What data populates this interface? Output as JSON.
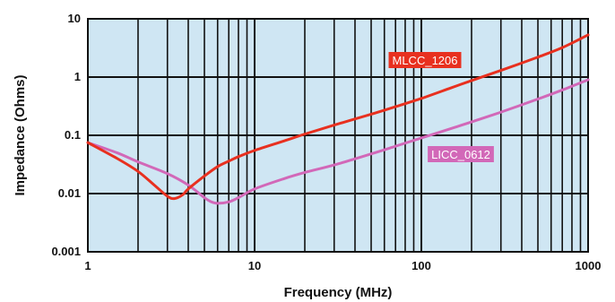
{
  "chart_data": {
    "type": "line",
    "title": "",
    "xlabel": "Frequency (MHz)",
    "ylabel": "Impedance  (Ohms)",
    "x_scale": "log",
    "y_scale": "log",
    "xlim": [
      1,
      1000
    ],
    "ylim": [
      0.001,
      10
    ],
    "grid": true,
    "legend": "inline labels on curves",
    "x_tick_labels": [
      "1",
      "10",
      "100",
      "1000"
    ],
    "y_tick_labels": [
      "10",
      "1",
      "0.1",
      "0.01",
      "0.001"
    ],
    "x_ticks": [
      1,
      10,
      100,
      1000
    ],
    "y_ticks": [
      10,
      1,
      0.1,
      0.01,
      0.001
    ],
    "series": [
      {
        "name": "MLCC_1206",
        "color": "#e8301f",
        "points": [
          [
            1,
            0.075
          ],
          [
            1.5,
            0.04
          ],
          [
            2,
            0.024
          ],
          [
            2.5,
            0.014
          ],
          [
            3,
            0.009
          ],
          [
            3.3,
            0.0082
          ],
          [
            3.7,
            0.0095
          ],
          [
            4,
            0.012
          ],
          [
            5,
            0.02
          ],
          [
            6,
            0.029
          ],
          [
            7,
            0.036
          ],
          [
            8,
            0.043
          ],
          [
            10,
            0.055
          ],
          [
            15,
            0.08
          ],
          [
            20,
            0.105
          ],
          [
            30,
            0.15
          ],
          [
            50,
            0.23
          ],
          [
            70,
            0.31
          ],
          [
            100,
            0.43
          ],
          [
            150,
            0.65
          ],
          [
            200,
            0.87
          ],
          [
            300,
            1.3
          ],
          [
            500,
            2.2
          ],
          [
            700,
            3.2
          ],
          [
            1000,
            5.3
          ]
        ]
      },
      {
        "name": "LICC_0612",
        "color": "#d268b8",
        "points": [
          [
            1,
            0.075
          ],
          [
            1.5,
            0.05
          ],
          [
            2,
            0.035
          ],
          [
            3,
            0.022
          ],
          [
            4,
            0.014
          ],
          [
            5,
            0.0085
          ],
          [
            5.5,
            0.0072
          ],
          [
            6,
            0.0068
          ],
          [
            7,
            0.0072
          ],
          [
            8,
            0.0085
          ],
          [
            10,
            0.012
          ],
          [
            15,
            0.018
          ],
          [
            20,
            0.023
          ],
          [
            30,
            0.031
          ],
          [
            50,
            0.048
          ],
          [
            70,
            0.065
          ],
          [
            100,
            0.09
          ],
          [
            150,
            0.13
          ],
          [
            200,
            0.17
          ],
          [
            300,
            0.25
          ],
          [
            500,
            0.42
          ],
          [
            700,
            0.6
          ],
          [
            1000,
            0.9
          ]
        ]
      }
    ]
  }
}
